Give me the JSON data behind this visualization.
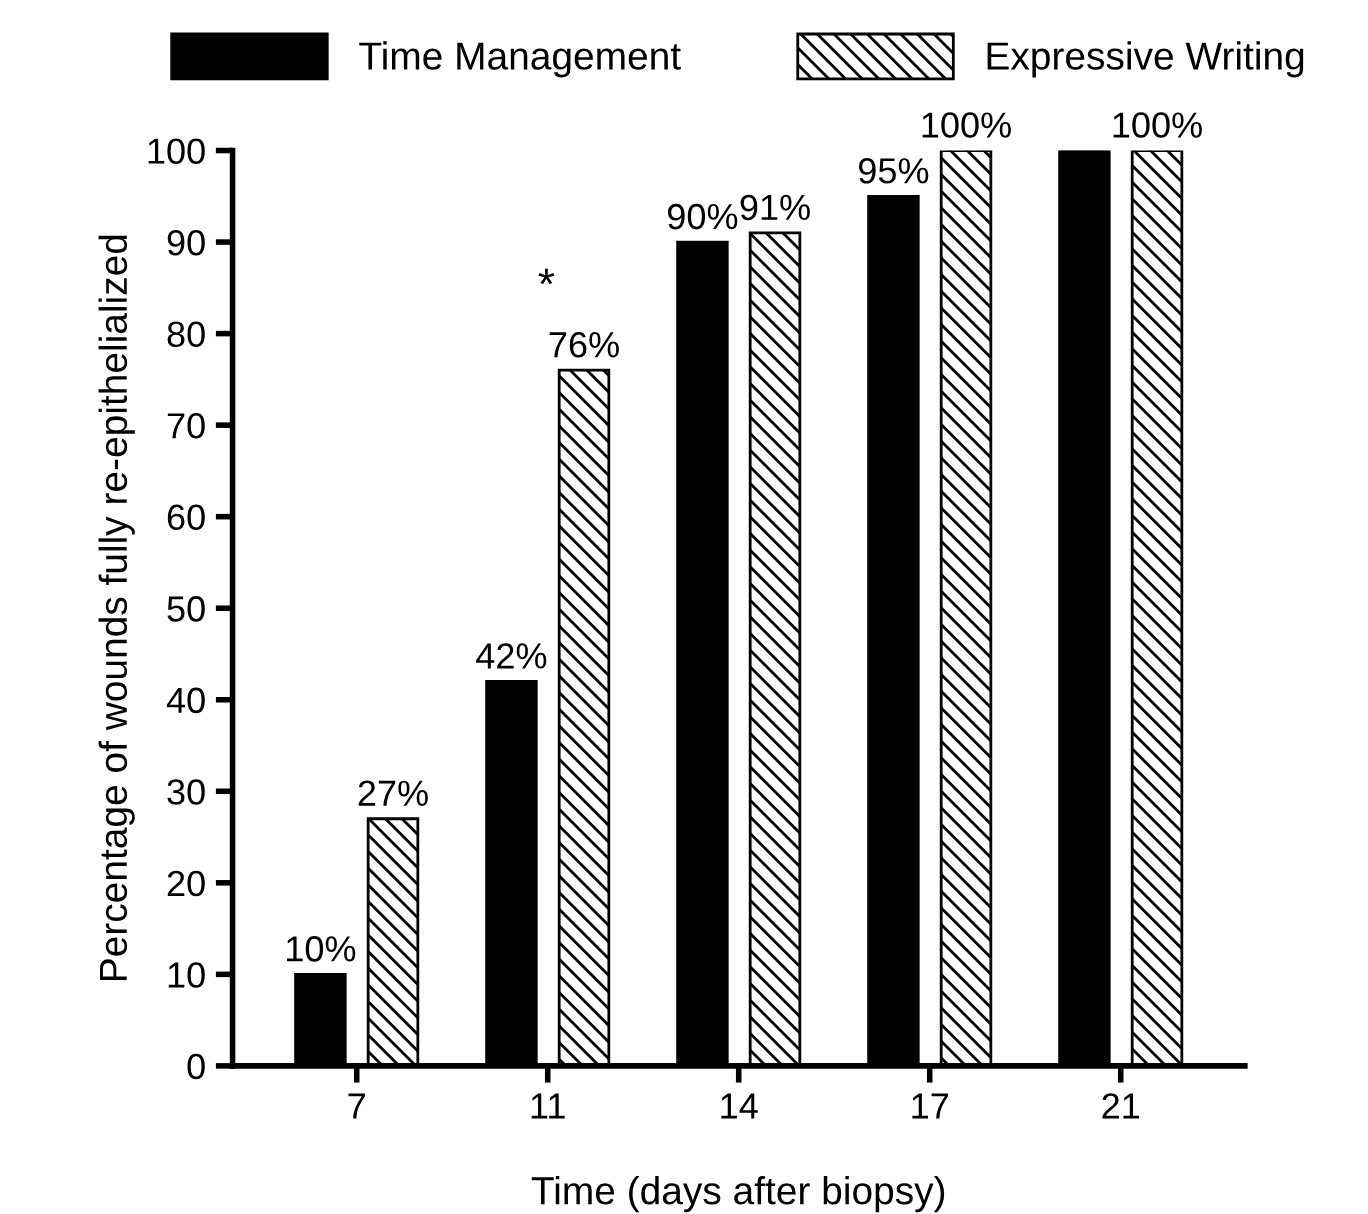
{
  "chart_data": {
    "type": "bar",
    "xlabel": "Time (days after biopsy)",
    "ylabel": "Percentage of wounds fully re-epithelialized",
    "categories": [
      "7",
      "11",
      "14",
      "17",
      "21"
    ],
    "series": [
      {
        "name": "Time Management",
        "color": "#000000",
        "values": [
          10,
          42,
          90,
          95,
          100
        ],
        "value_labels": [
          "10%",
          "42%",
          "90%",
          "95%",
          null
        ]
      },
      {
        "name": "Expressive Writing",
        "color": "#000000",
        "values": [
          27,
          76,
          91,
          100,
          100
        ],
        "value_labels": [
          "27%",
          "76%",
          "91%",
          "100%",
          "100%"
        ]
      }
    ],
    "annotations": [
      "*"
    ],
    "ylim": [
      0,
      100
    ],
    "yticks": [
      0,
      10,
      20,
      30,
      40,
      50,
      60,
      70,
      80,
      90,
      100
    ],
    "grid": false,
    "legend": "top"
  }
}
